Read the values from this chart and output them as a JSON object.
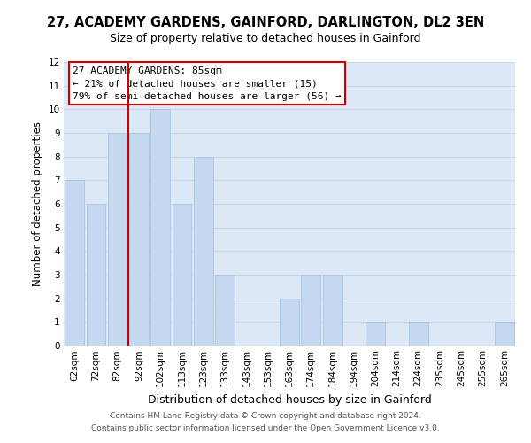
{
  "title": "27, ACADEMY GARDENS, GAINFORD, DARLINGTON, DL2 3EN",
  "subtitle": "Size of property relative to detached houses in Gainford",
  "xlabel": "Distribution of detached houses by size in Gainford",
  "ylabel": "Number of detached properties",
  "bar_labels": [
    "62sqm",
    "72sqm",
    "82sqm",
    "92sqm",
    "102sqm",
    "113sqm",
    "123sqm",
    "133sqm",
    "143sqm",
    "153sqm",
    "163sqm",
    "174sqm",
    "184sqm",
    "194sqm",
    "204sqm",
    "214sqm",
    "224sqm",
    "235sqm",
    "245sqm",
    "255sqm",
    "265sqm"
  ],
  "bar_values": [
    7,
    6,
    9,
    9,
    10,
    6,
    8,
    3,
    0,
    0,
    2,
    3,
    3,
    0,
    1,
    0,
    1,
    0,
    0,
    0,
    1
  ],
  "bar_color": "#c5d8f0",
  "bar_edge_color": "#aac4e0",
  "highlight_line_color": "#cc0000",
  "ylim": [
    0,
    12
  ],
  "yticks": [
    0,
    1,
    2,
    3,
    4,
    5,
    6,
    7,
    8,
    9,
    10,
    11,
    12
  ],
  "annotation_title": "27 ACADEMY GARDENS: 85sqm",
  "annotation_line1": "← 21% of detached houses are smaller (15)",
  "annotation_line2": "79% of semi-detached houses are larger (56) →",
  "annotation_box_color": "#ffffff",
  "annotation_box_edge": "#cc0000",
  "grid_color": "#c8d8e8",
  "plot_bg_color": "#dce8f5",
  "fig_bg_color": "#ffffff",
  "footer_line1": "Contains HM Land Registry data © Crown copyright and database right 2024.",
  "footer_line2": "Contains public sector information licensed under the Open Government Licence v3.0.",
  "title_fontsize": 10.5,
  "subtitle_fontsize": 9,
  "ylabel_fontsize": 8.5,
  "xlabel_fontsize": 9,
  "tick_fontsize": 7.5,
  "annotation_fontsize": 8,
  "footer_fontsize": 6.5
}
